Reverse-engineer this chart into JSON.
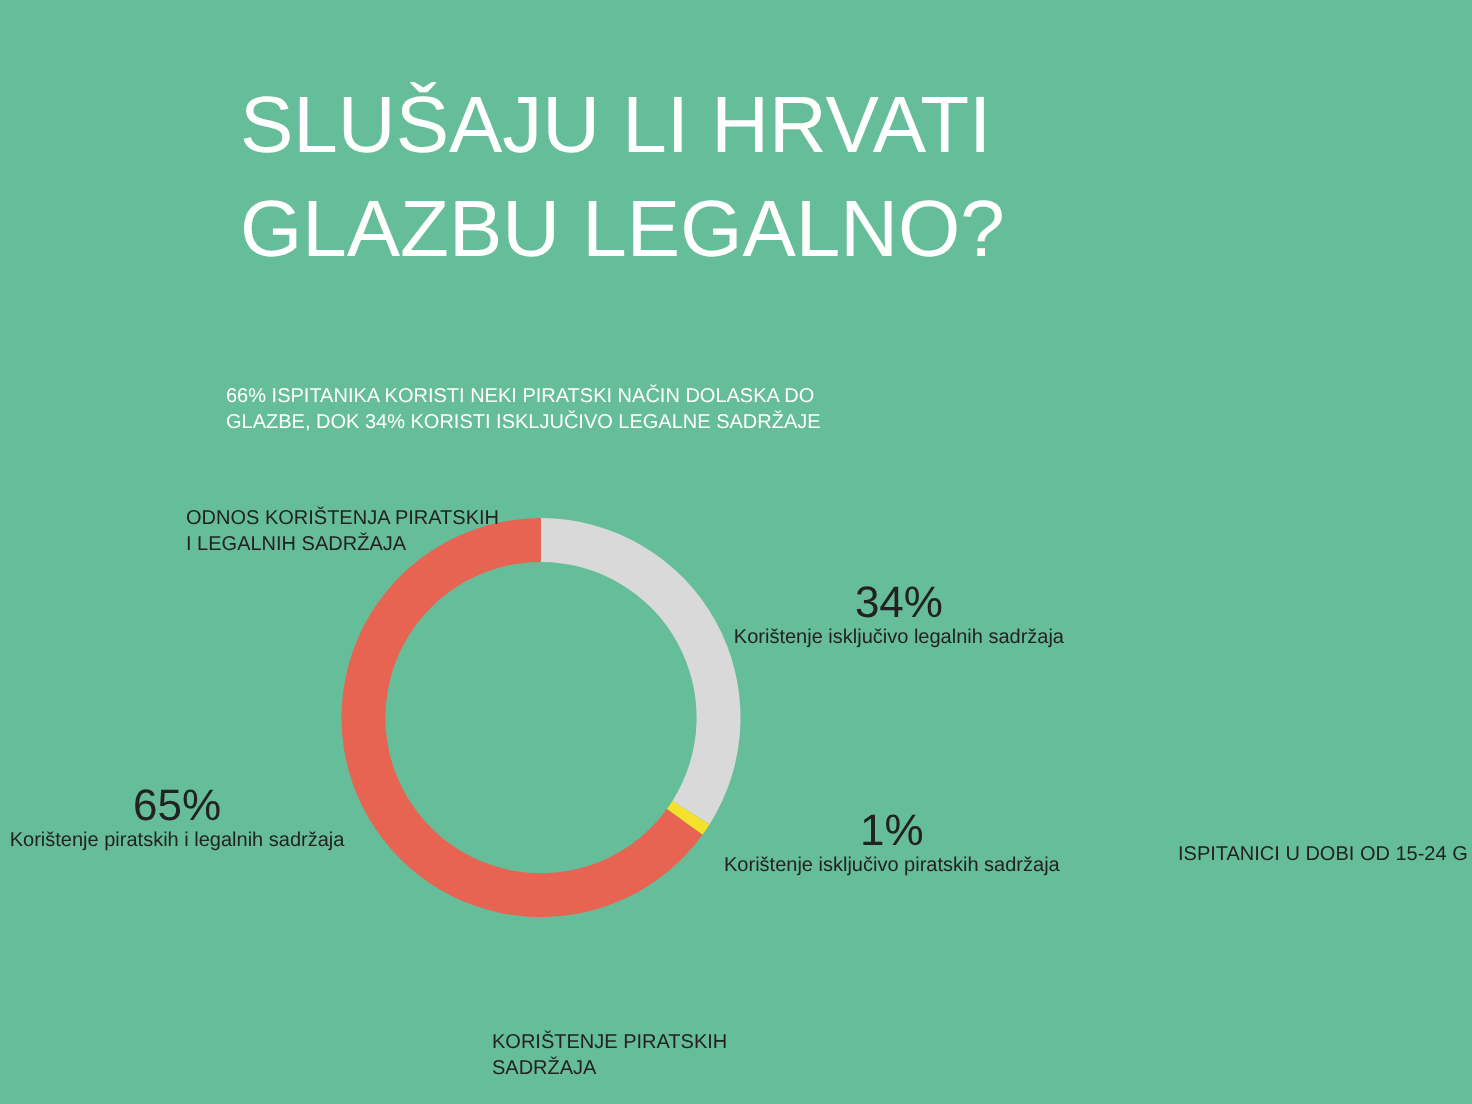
{
  "chart_data": {
    "type": "donut",
    "title": "SLUŠAJU LI HRVATI GLAZBU LEGALNO?",
    "subtitle": "66% ISPITANIKA KORISTI NEKI PIRATSKI NAČIN DOLASKA DO GLAZBE, DOK 34% KORISTI ISKLJUČIVO LEGALNE SADRŽAJE",
    "xlabel": "ODNOS KORIŠTENJA PIRATSKIH I LEGALNIH SADRŽAJA",
    "categories": [
      "Korištenje isključivo legalnih sadržaja",
      "Korištenje isključivo piratskih sadržaja",
      "Korištenje piratskih i legalnih sadržaja"
    ],
    "values": [
      34,
      1,
      65
    ],
    "colors": [
      "#d9d9d9",
      "#f5e12a",
      "#e86452"
    ],
    "value_labels": [
      "34%",
      "1%",
      "65%"
    ],
    "annotations": [
      "KORIŠTENJE PIRATSKIH SADRŽAJA",
      "ISPITANICI U DOBI OD 15-24 G"
    ],
    "legend": false
  }
}
